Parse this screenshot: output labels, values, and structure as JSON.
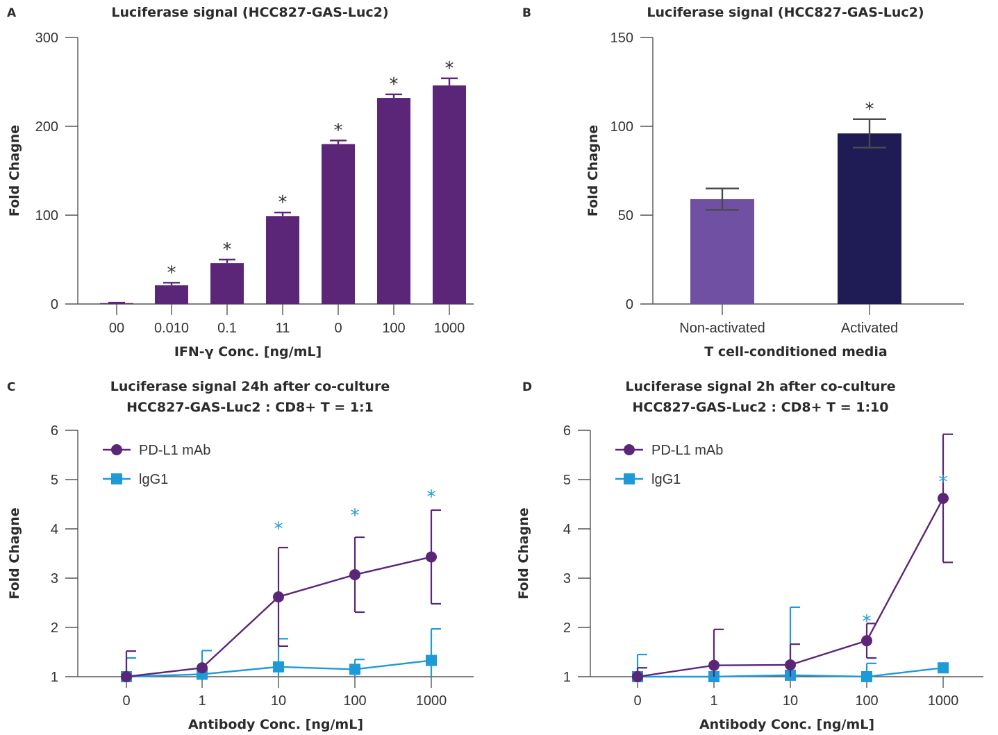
{
  "colors": {
    "bar_purple": "#5b2578",
    "bar_light_purple": "#6f50a3",
    "bar_navy": "#1f1c55",
    "line_purple": "#5b2578",
    "line_blue": "#1e9ad6",
    "asterisk_dark": "#333333",
    "asterisk_blue": "#1e9ad6"
  },
  "chart_data": [
    {
      "panel": "A",
      "type": "bar",
      "title": "Luciferase signal (HCC827-GAS-Luc2)",
      "xlabel": "IFN-γ Conc. [ng/mL]",
      "ylabel": "Fold Chagne",
      "categories": [
        "00",
        "0.010",
        "0.1",
        "11",
        "0",
        "100",
        "1000"
      ],
      "values": [
        1,
        21,
        46,
        99,
        180,
        232,
        246
      ],
      "errors": [
        0.5,
        3,
        4,
        4,
        4,
        4,
        8
      ],
      "significance": [
        "",
        "*",
        "*",
        "*",
        "*",
        "*",
        "*"
      ],
      "yticks": [
        0,
        100,
        200,
        300
      ],
      "ylim": [
        0,
        300
      ]
    },
    {
      "panel": "B",
      "type": "bar",
      "title": "Luciferase signal (HCC827-GAS-Luc2)",
      "xlabel": "T cell-conditioned media",
      "ylabel": "Fold Chagne",
      "categories": [
        "Non-activated",
        "Activated"
      ],
      "values": [
        59,
        96
      ],
      "errors": [
        6,
        8
      ],
      "significance": [
        "",
        "*"
      ],
      "yticks": [
        0,
        50,
        100,
        150
      ],
      "ylim": [
        0,
        150
      ]
    },
    {
      "panel": "C",
      "type": "line",
      "title": "Luciferase signal 24h after co-culture",
      "subtitle": "HCC827-GAS-Luc2 : CD8+ T = 1:1",
      "xlabel": "Antibody Conc. [ng/mL]",
      "ylabel": "Fold Chagne",
      "x": [
        "0",
        "1",
        "10",
        "100",
        "1000"
      ],
      "yticks": [
        1,
        2,
        3,
        4,
        5,
        6
      ],
      "ylim": [
        1,
        6
      ],
      "legend_position": "top-left",
      "series": [
        {
          "name": "PD-L1 mAb",
          "values": [
            1.0,
            1.18,
            2.62,
            3.07,
            3.43
          ],
          "errors": [
            0.52,
            0.0,
            1.0,
            0.76,
            0.95
          ],
          "marker": "circle"
        },
        {
          "name": "lgG1",
          "values": [
            1.0,
            1.05,
            1.2,
            1.15,
            1.33
          ],
          "errors": [
            0.38,
            0.48,
            0.57,
            0.2,
            0.64
          ],
          "marker": "square"
        }
      ],
      "significance": [
        "",
        "",
        "*",
        "*",
        "*"
      ],
      "sig_y": [
        4.05,
        4.32,
        4.7
      ]
    },
    {
      "panel": "D",
      "type": "line",
      "title": "Luciferase signal 2h after co-culture",
      "subtitle": "HCC827-GAS-Luc2 : CD8+ T = 1:10",
      "xlabel": "Antibody Conc. [ng/mL]",
      "ylabel": "Fold Chagne",
      "x": [
        "0",
        "1",
        "10",
        "100",
        "1000"
      ],
      "yticks": [
        1,
        2,
        3,
        4,
        5,
        6
      ],
      "ylim": [
        1,
        6
      ],
      "legend_position": "top-left",
      "series": [
        {
          "name": "PD-L1 mAb",
          "values": [
            1.0,
            1.23,
            1.24,
            1.73,
            4.62
          ],
          "errors": [
            0.18,
            0.73,
            0.42,
            0.35,
            1.3
          ],
          "marker": "circle"
        },
        {
          "name": "lgG1",
          "values": [
            1.0,
            1.0,
            1.03,
            1.0,
            1.18
          ],
          "errors": [
            0.45,
            0.0,
            1.38,
            0.27,
            0.0
          ],
          "marker": "square"
        }
      ],
      "significance": [
        "",
        "",
        "",
        "*",
        "*"
      ],
      "sig_y": [
        2.17,
        5.0
      ]
    }
  ]
}
